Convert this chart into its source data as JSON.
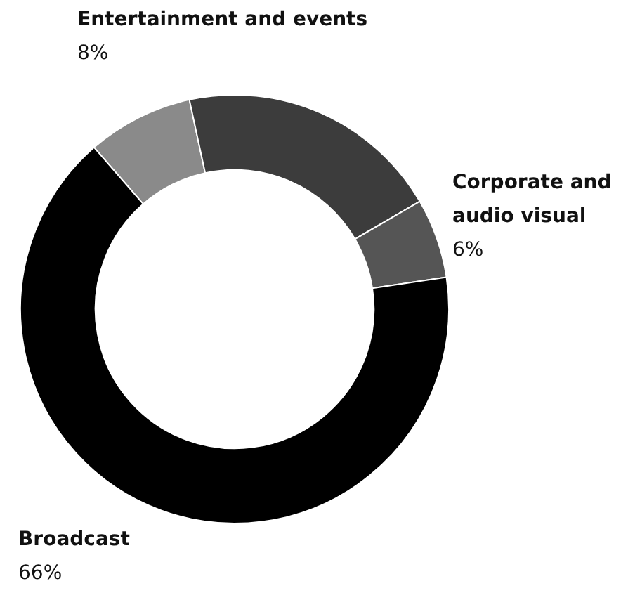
{
  "chart_data": {
    "type": "donut",
    "categories": [
      "Entertainment and events",
      null,
      "Corporate and audio visual",
      "Broadcast"
    ],
    "values": [
      8,
      20,
      6,
      66
    ],
    "colors": [
      "#8a8a8a",
      "#3c3c3c",
      "#555555",
      "#000000"
    ],
    "value_labels": [
      "8%",
      null,
      "6%",
      "66%"
    ],
    "legend": false
  }
}
